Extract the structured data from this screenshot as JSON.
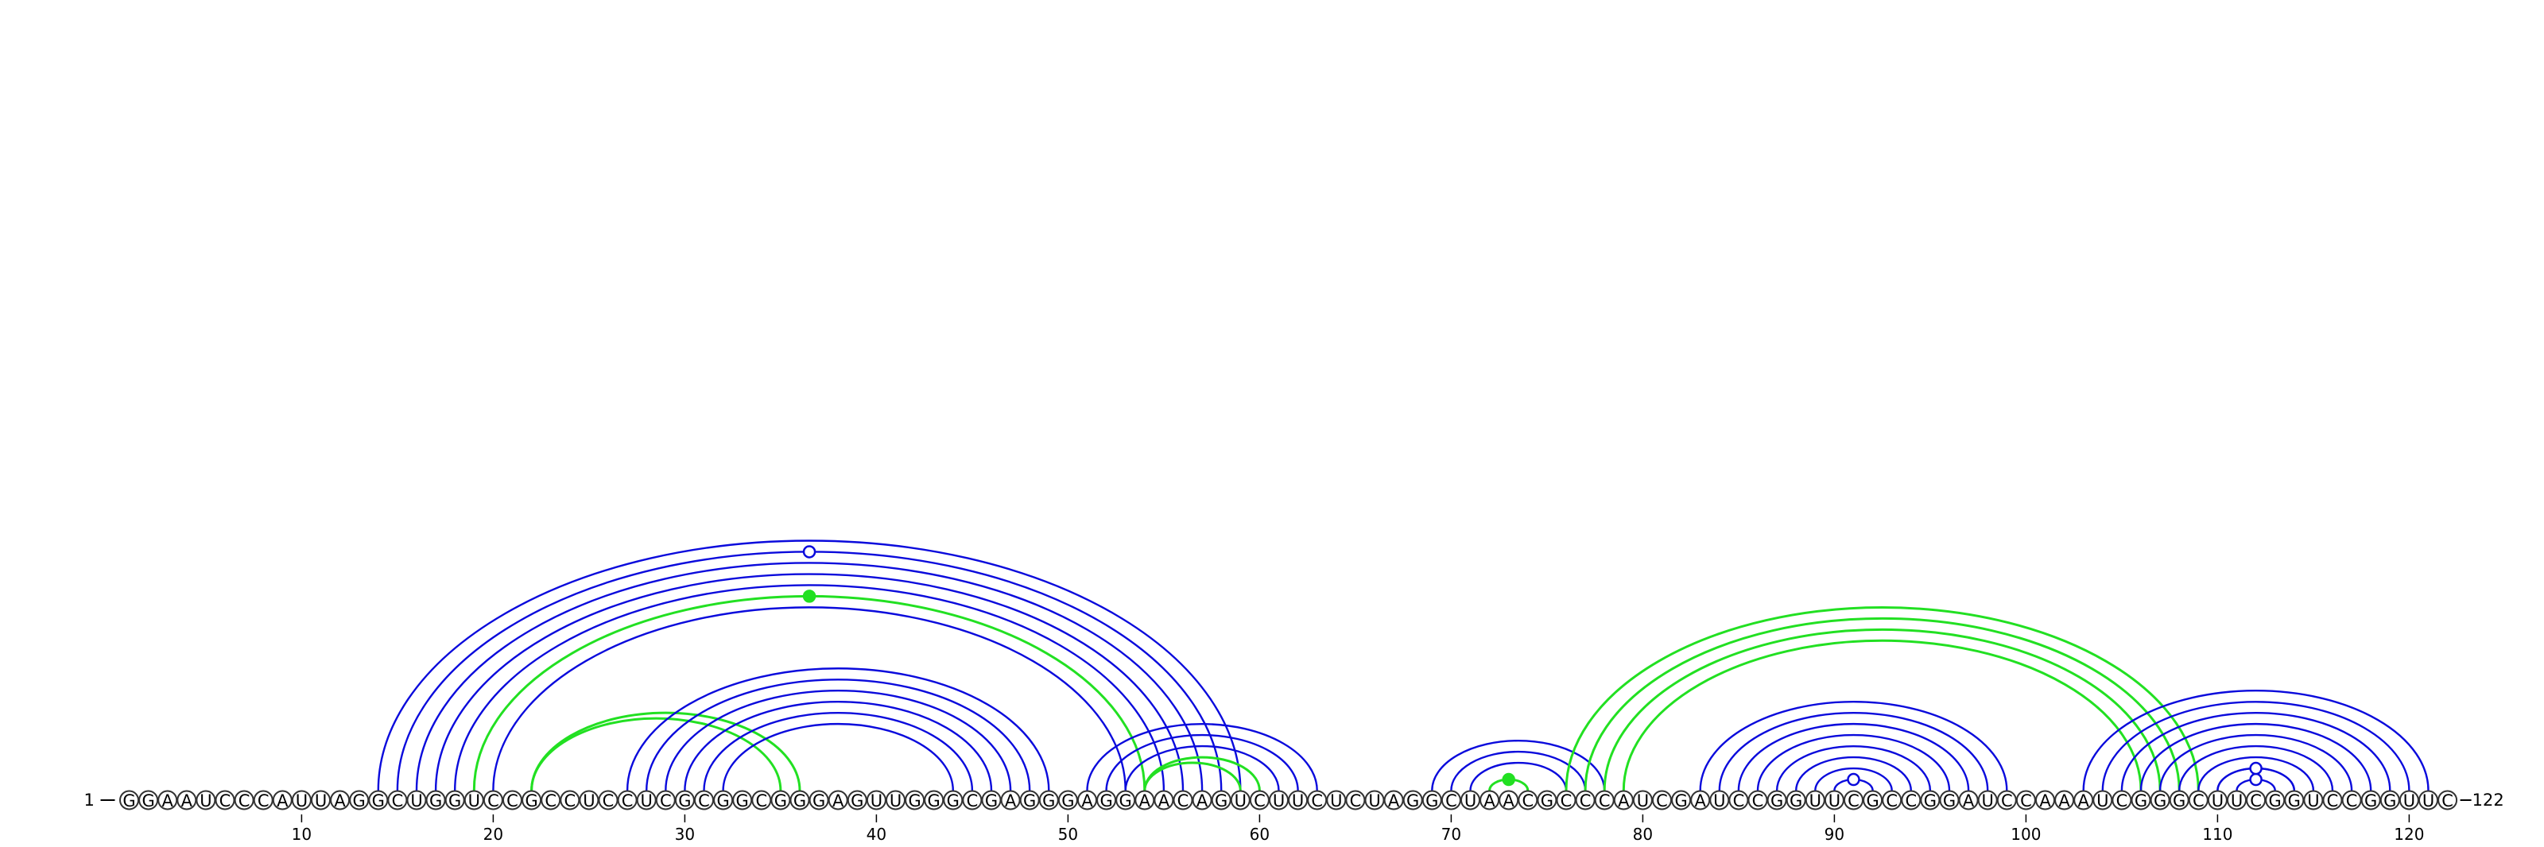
{
  "sequence": "GGAAUCCCAUUAGGCUGGUCCGCCUCCUCGCGGCGGGAGUUGGGCGAGGGAGGAACAGUCUUCUCUAGGCUAACGCCCAUCGAUCCGGUUCGCCGGAUCCAAAUCGGGCUUCGGUCCGGUUC",
  "start_label": "1",
  "end_label": "122",
  "ticks": [
    "10",
    "20",
    "30",
    "40",
    "50",
    "60",
    "70",
    "80",
    "90",
    "100",
    "110",
    "120"
  ],
  "colors": {
    "blue": "#0a0adc",
    "green": "#22e022"
  },
  "arc_groups": [
    {
      "color": "blue",
      "pairs": [
        [
          15,
          58
        ],
        [
          16,
          57
        ],
        [
          17,
          56
        ],
        [
          18,
          55
        ],
        [
          20,
          53
        ]
      ],
      "mark": "open"
    },
    {
      "color": "green",
      "pairs": [
        [
          19,
          54
        ]
      ],
      "mark": "filled"
    },
    {
      "color": "blue",
      "pairs": [
        [
          14,
          59
        ]
      ],
      "mark": "none"
    },
    {
      "color": "green",
      "pairs": [
        [
          22,
          36
        ],
        [
          22,
          35
        ]
      ],
      "mark": "none"
    },
    {
      "color": "blue",
      "pairs": [
        [
          27,
          49
        ],
        [
          28,
          48
        ],
        [
          29,
          47
        ],
        [
          30,
          46
        ],
        [
          31,
          45
        ],
        [
          32,
          44
        ]
      ],
      "mark": "none"
    },
    {
      "color": "blue",
      "pairs": [
        [
          51,
          63
        ],
        [
          52,
          62
        ],
        [
          53,
          61
        ]
      ],
      "mark": "none"
    },
    {
      "color": "green",
      "pairs": [
        [
          54,
          60
        ],
        [
          54,
          59
        ]
      ],
      "mark": "none"
    },
    {
      "color": "blue",
      "pairs": [
        [
          69,
          78
        ],
        [
          70,
          77
        ],
        [
          71,
          76
        ]
      ],
      "mark": "none"
    },
    {
      "color": "green",
      "pairs": [
        [
          72,
          74
        ]
      ],
      "mark": "filled"
    },
    {
      "color": "green",
      "pairs": [
        [
          76,
          109
        ],
        [
          77,
          108
        ],
        [
          78,
          107
        ],
        [
          79,
          106
        ]
      ],
      "mark": "none"
    },
    {
      "color": "blue",
      "pairs": [
        [
          83,
          99
        ],
        [
          84,
          98
        ],
        [
          85,
          97
        ],
        [
          86,
          96
        ],
        [
          87,
          95
        ],
        [
          88,
          94
        ],
        [
          89,
          93
        ]
      ],
      "mark": "none"
    },
    {
      "color": "blue",
      "pairs": [
        [
          90,
          92
        ]
      ],
      "mark": "open"
    },
    {
      "color": "blue",
      "pairs": [
        [
          103,
          121
        ],
        [
          104,
          120
        ],
        [
          105,
          119
        ],
        [
          106,
          118
        ],
        [
          107,
          117
        ],
        [
          108,
          116
        ],
        [
          109,
          115
        ],
        [
          110,
          114
        ]
      ],
      "mark": "none"
    },
    {
      "color": "blue",
      "pairs": [
        [
          111,
          113
        ]
      ],
      "mark": "open"
    },
    {
      "color": "blue",
      "pairs": [
        [
          110,
          114
        ]
      ],
      "mark": "open"
    }
  ]
}
